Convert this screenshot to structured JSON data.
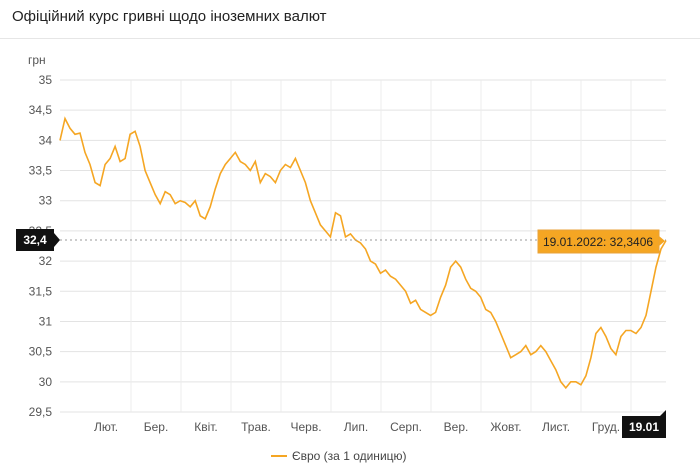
{
  "header": {
    "title": "Офіційний курс гривні щодо іноземних валют"
  },
  "chart_data": {
    "type": "line",
    "ylabel": "грн",
    "ylim": [
      29.5,
      35
    ],
    "yticks": [
      "35",
      "34,5",
      "34",
      "33,5",
      "33",
      "32,5",
      "32",
      "31,5",
      "31",
      "30,5",
      "30",
      "29,5"
    ],
    "xticks": [
      "Лют.",
      "Бер.",
      "Квіт.",
      "Трав.",
      "Черв.",
      "Лип.",
      "Серп.",
      "Вер.",
      "Жовт.",
      "Лист.",
      "Груд."
    ],
    "grid": true,
    "legend_position": "bottom",
    "series": [
      {
        "name": "Євро (за 1 одиницю)",
        "color": "#f5a623",
        "values": [
          34.0,
          34.36,
          34.2,
          34.1,
          34.12,
          33.8,
          33.6,
          33.3,
          33.25,
          33.6,
          33.7,
          33.9,
          33.65,
          33.7,
          34.1,
          34.15,
          33.9,
          33.5,
          33.3,
          33.1,
          32.95,
          33.15,
          33.1,
          32.95,
          33.0,
          32.97,
          32.9,
          33.0,
          32.75,
          32.7,
          32.9,
          33.2,
          33.45,
          33.6,
          33.7,
          33.8,
          33.65,
          33.6,
          33.5,
          33.65,
          33.3,
          33.45,
          33.4,
          33.3,
          33.5,
          33.6,
          33.55,
          33.7,
          33.5,
          33.3,
          33.0,
          32.8,
          32.6,
          32.5,
          32.4,
          32.8,
          32.75,
          32.4,
          32.45,
          32.35,
          32.3,
          32.2,
          32.0,
          31.95,
          31.8,
          31.85,
          31.75,
          31.7,
          31.6,
          31.5,
          31.3,
          31.35,
          31.2,
          31.15,
          31.1,
          31.15,
          31.4,
          31.6,
          31.9,
          32.0,
          31.9,
          31.7,
          31.55,
          31.5,
          31.4,
          31.2,
          31.15,
          31.0,
          30.8,
          30.6,
          30.4,
          30.45,
          30.5,
          30.6,
          30.45,
          30.5,
          30.6,
          30.5,
          30.35,
          30.2,
          30.0,
          29.9,
          30.0,
          30.0,
          29.95,
          30.1,
          30.4,
          30.8,
          30.9,
          30.75,
          30.55,
          30.45,
          30.75,
          30.85,
          30.85,
          30.8,
          30.9,
          31.1,
          31.5,
          31.9,
          32.2,
          32.3406
        ]
      }
    ],
    "crosshair": {
      "value_label": "32,4",
      "date_label": "19.01",
      "tooltip": "19.01.2022: 32,3406"
    }
  }
}
